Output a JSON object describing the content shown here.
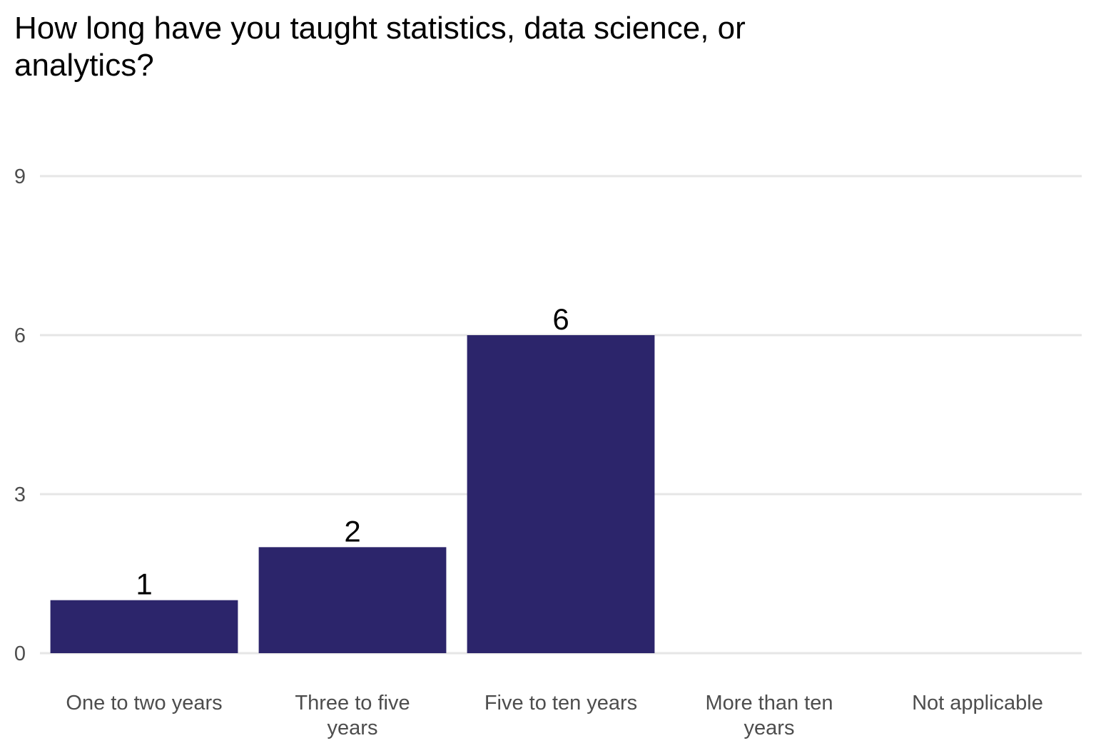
{
  "chart_data": {
    "type": "bar",
    "title": "How long have you taught statistics, data science, or analytics?",
    "categories": [
      "One to two years",
      "Three to five years",
      "Five to ten years",
      "More than ten years",
      "Not applicable"
    ],
    "category_label_lines": [
      [
        "One to two years"
      ],
      [
        "Three to five",
        "years"
      ],
      [
        "Five to ten years"
      ],
      [
        "More than ten",
        "years"
      ],
      [
        "Not applicable"
      ]
    ],
    "values": [
      1,
      2,
      6,
      0,
      0
    ],
    "data_labels": [
      "1",
      "2",
      "6",
      "",
      ""
    ],
    "y_ticks": [
      0,
      3,
      6,
      9
    ],
    "ylim": [
      0,
      9
    ],
    "xlabel": "",
    "ylabel": "",
    "grid": "horizontal major",
    "legend": "none",
    "bar_color": "#2c256b",
    "grid_color": "#e6e6e6"
  }
}
